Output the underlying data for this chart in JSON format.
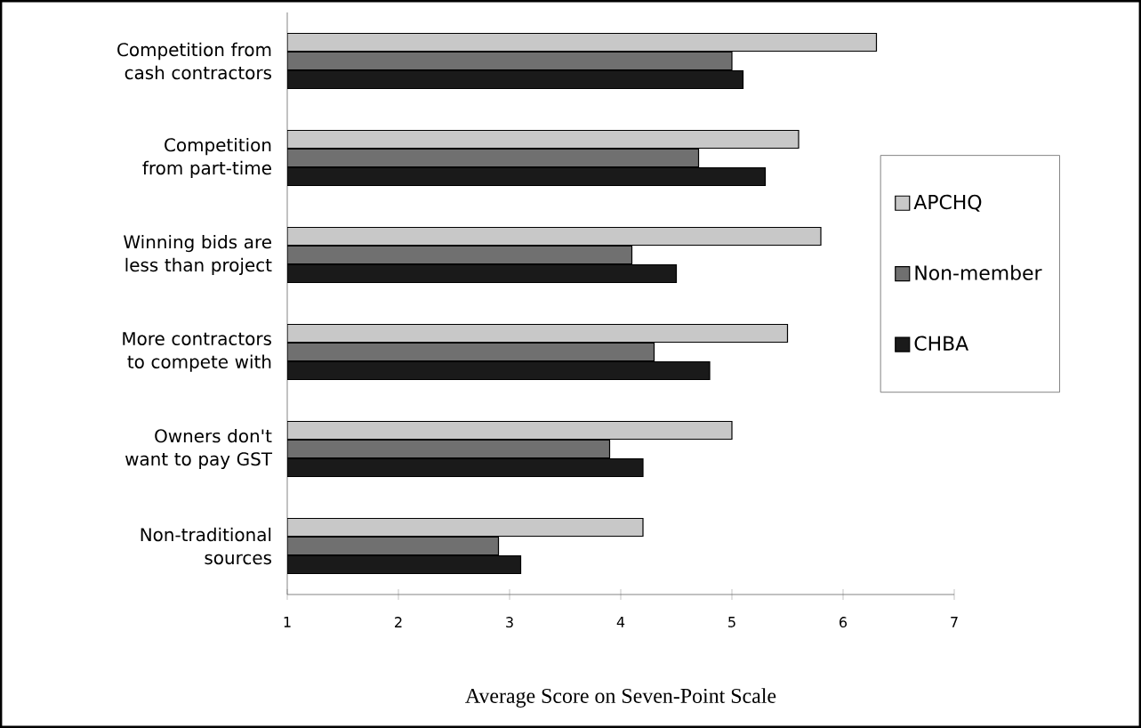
{
  "chart_data": {
    "type": "bar",
    "orientation": "horizontal",
    "categories": [
      "Competition from cash contractors",
      "Competition from part-time",
      "Winning bids are less than project",
      "More contractors to compete with",
      "Owners don't want to pay GST",
      "Non-traditional sources"
    ],
    "series": [
      {
        "name": "APCHQ",
        "color": "#c8c8c8",
        "values": [
          6.3,
          5.6,
          5.8,
          5.5,
          5.0,
          4.2
        ]
      },
      {
        "name": "Non-member",
        "color": "#707070",
        "values": [
          5.0,
          4.7,
          4.1,
          4.3,
          3.9,
          2.9
        ]
      },
      {
        "name": "CHBA",
        "color": "#1a1a1a",
        "values": [
          5.1,
          5.3,
          4.5,
          4.8,
          4.2,
          3.1
        ]
      }
    ],
    "xlim": [
      1,
      7
    ],
    "xticks": [
      1,
      2,
      3,
      4,
      5,
      6,
      7
    ],
    "xlabel": "Average Score on Seven-Point Scale",
    "legend": "right",
    "grid": false
  }
}
